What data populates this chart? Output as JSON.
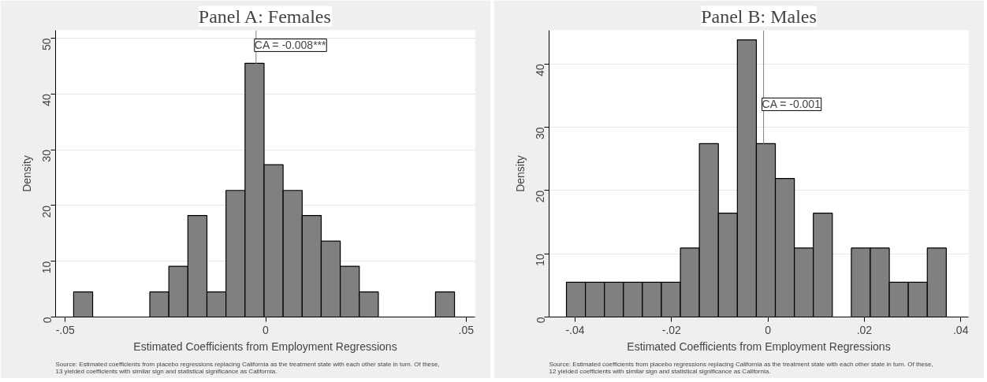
{
  "chart_data": [
    {
      "type": "histogram",
      "title": "Panel A: Females",
      "xlabel": "Estimated Coefficients from Employment Regressions",
      "ylabel": "Density",
      "bins": [
        -0.0479,
        -0.04315,
        -0.0384,
        -0.03365,
        -0.0289,
        -0.02415,
        -0.0194,
        -0.01465,
        -0.0099,
        -0.00515,
        -0.0004,
        0.00435,
        0.0091,
        0.01385,
        0.0186,
        0.02335,
        0.0281,
        0.03285,
        0.0376,
        0.04235,
        0.0471
      ],
      "values": [
        4.5,
        0,
        0,
        0,
        4.5,
        9.1,
        18.2,
        4.5,
        22.7,
        45.5,
        27.3,
        22.7,
        18.2,
        13.6,
        9.1,
        4.5,
        0,
        0,
        0,
        4.5
      ],
      "color": "#808080",
      "xlim": [
        -0.0524,
        0.0522
      ],
      "ylim": [
        0,
        51.4
      ],
      "xticks": [
        {
          "value": -0.05,
          "label": "-.05"
        },
        0,
        {
          "value": 0.05,
          "label": ".05"
        }
      ],
      "yticks": [
        0,
        10,
        20,
        30,
        40,
        50
      ],
      "grid": "y",
      "ref_lines": [
        {
          "axis": "x",
          "value": -0.0024,
          "color": "#808080"
        }
      ],
      "annotations": [
        {
          "text": "CA = -0.008***",
          "x": -0.0024,
          "y": 47.6
        },
        "Source: Estimated coefficients from placebo regressions replacing California as the treatment state with each other state in turn. Of these,\n13 yielded coefficients with similar sign and statistical significance as California."
      ]
    },
    {
      "type": "histogram",
      "title": "Panel B: Males",
      "xlabel": "Estimated Coefficients from Employment Regressions",
      "ylabel": "Density",
      "bins": [
        -0.0418,
        -0.03786,
        -0.03392,
        -0.02998,
        -0.02604,
        -0.0221,
        -0.01816,
        -0.01422,
        -0.01028,
        -0.00634,
        -0.0024,
        0.00154,
        0.00548,
        0.00942,
        0.01336,
        0.0173,
        0.02124,
        0.02518,
        0.02912,
        0.03306,
        0.037
      ],
      "values": [
        5.5,
        5.5,
        5.5,
        5.5,
        5.5,
        5.5,
        10.9,
        27.4,
        16.4,
        43.8,
        27.4,
        21.9,
        10.9,
        16.4,
        0,
        10.9,
        10.9,
        5.5,
        5.5,
        10.9
      ],
      "color": "#808080",
      "xlim": [
        -0.0454,
        0.0416
      ],
      "ylim": [
        0,
        45.3
      ],
      "xticks": [
        {
          "value": -0.04,
          "label": "-.04"
        },
        {
          "value": -0.02,
          "label": "-.02"
        },
        0,
        {
          "value": 0.02,
          "label": ".02"
        },
        {
          "value": 0.04,
          "label": ".04"
        }
      ],
      "yticks": [
        0,
        10,
        20,
        30,
        40
      ],
      "grid": "y",
      "ref_lines": [
        {
          "axis": "x",
          "value": -0.0009,
          "label": "CA = -0.001",
          "color": "#808080"
        }
      ],
      "annotations": [
        "Source: Estimated coefficients from placebo regressions replacing California as the treatment state with each other state in turn. Of these,\n12 yielded coefficients with similar sign and statistical significance as California."
      ]
    }
  ]
}
